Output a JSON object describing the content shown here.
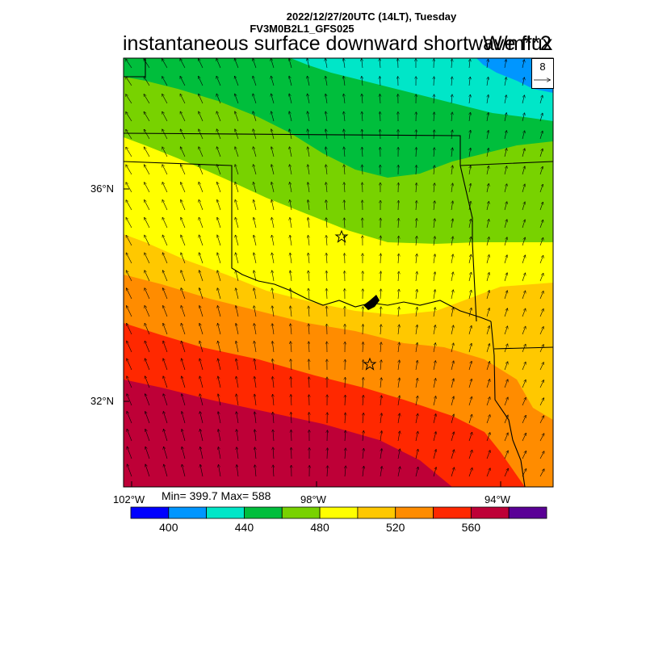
{
  "header": {
    "datetime_line": "2022/12/27/20UTC (14LT), Tuesday",
    "model_line": "FV3M0B2L1_GFS025"
  },
  "map": {
    "title": "instantaneous surface downward shortwave flux",
    "units": "W/m**2",
    "lon_labels": [
      "102°W",
      "98°W",
      "94°W"
    ],
    "lat_labels": [
      "36°N",
      "32°N"
    ],
    "stats_text": "Min= 399.7 Max= 588",
    "min": 399.7,
    "max": 588,
    "wind_reference_value": "8",
    "markers": [
      {
        "name": "star-oklahoma-city"
      },
      {
        "name": "star-dallas"
      }
    ]
  },
  "colorbar": {
    "colors": [
      "#0000ff",
      "#0096ff",
      "#00e6c8",
      "#00be3c",
      "#78d200",
      "#ffff00",
      "#ffc800",
      "#ff8c00",
      "#ff2800",
      "#be0037",
      "#5a0096"
    ],
    "labels": [
      "400",
      "440",
      "480",
      "520",
      "560"
    ]
  }
}
